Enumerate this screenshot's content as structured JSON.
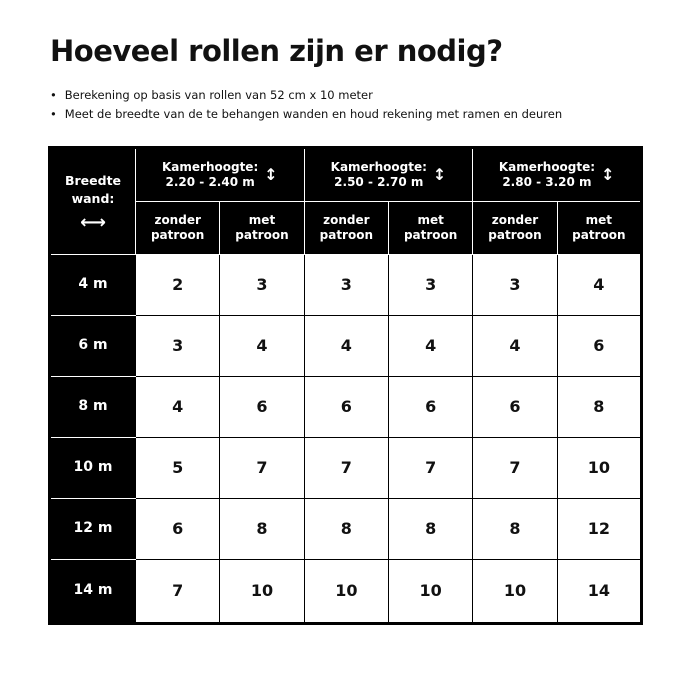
{
  "title": "Hoeveel rollen zijn er nodig?",
  "bullets": [
    "Berekening op basis van rollen van 52 cm x 10 meter",
    "Meet de breedte van de te behangen wanden en houd rekening met ramen en deuren"
  ],
  "table": {
    "corner": {
      "line1": "Breedte",
      "line2": "wand:",
      "icon": "horizontal-double-arrow-icon"
    },
    "groups": [
      {
        "label": "Kamerhoogte:",
        "range": "2.20 - 2.40 m"
      },
      {
        "label": "Kamerhoogte:",
        "range": "2.50 - 2.70 m"
      },
      {
        "label": "Kamerhoogte:",
        "range": "2.80 - 3.20 m"
      }
    ],
    "subheaders": [
      [
        "zonder",
        "patroon"
      ],
      [
        "met",
        "patroon"
      ],
      [
        "zonder",
        "patroon"
      ],
      [
        "met",
        "patroon"
      ],
      [
        "zonder",
        "patroon"
      ],
      [
        "met",
        "patroon"
      ]
    ],
    "rows": [
      {
        "width": "4 m",
        "values": [
          "2",
          "3",
          "3",
          "3",
          "3",
          "4"
        ]
      },
      {
        "width": "6 m",
        "values": [
          "3",
          "4",
          "4",
          "4",
          "4",
          "6"
        ]
      },
      {
        "width": "8 m",
        "values": [
          "4",
          "6",
          "6",
          "6",
          "6",
          "8"
        ]
      },
      {
        "width": "10 m",
        "values": [
          "5",
          "7",
          "7",
          "7",
          "7",
          "10"
        ]
      },
      {
        "width": "12 m",
        "values": [
          "6",
          "8",
          "8",
          "8",
          "8",
          "12"
        ]
      },
      {
        "width": "14 m",
        "values": [
          "7",
          "10",
          "10",
          "10",
          "10",
          "14"
        ]
      }
    ]
  }
}
